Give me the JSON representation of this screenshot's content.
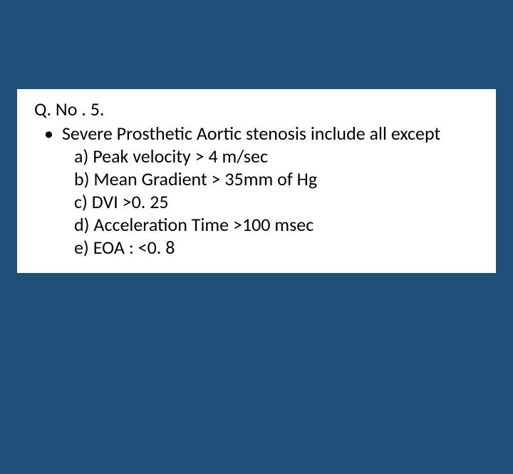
{
  "slide": {
    "background_color": "#1f4e79",
    "content_background": "#ffffff",
    "text_color": "#000000",
    "font_size_pt": 20,
    "question_number": "Q. No . 5.",
    "bullet_char": "•",
    "question_text": "Severe Prosthetic Aortic stenosis include all except",
    "options": [
      "a) Peak velocity > 4 m/sec",
      "b) Mean Gradient > 35mm of Hg",
      "c) DVI >0. 25",
      "d) Acceleration Time >100 msec",
      "e) EOA : <0. 8"
    ]
  }
}
